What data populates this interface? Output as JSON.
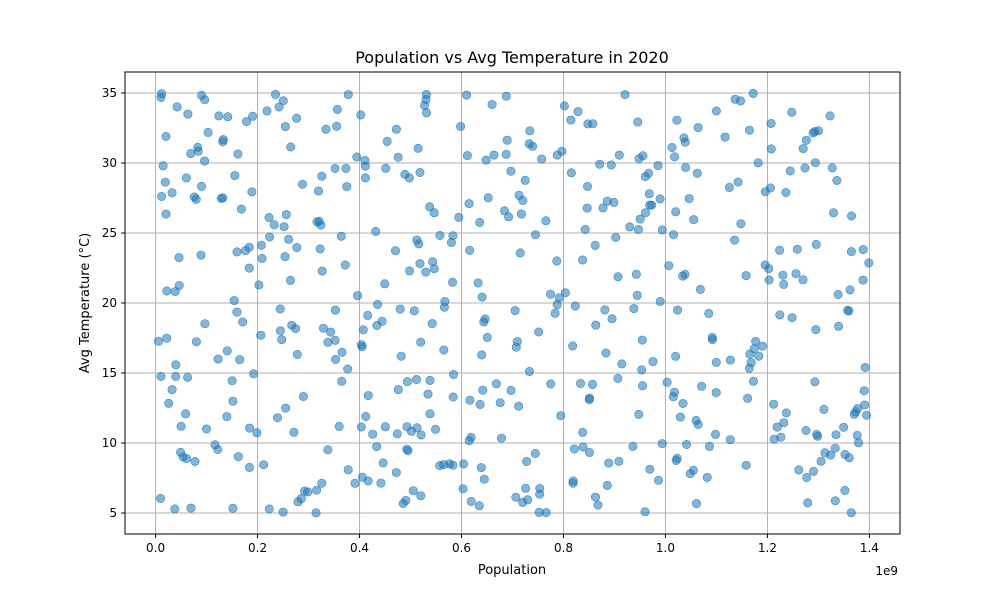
{
  "chart_data": {
    "type": "scatter",
    "title": "Population vs Avg Temperature in 2020",
    "xlabel": "Population",
    "ylabel": "Avg Temperature (°C)",
    "x_offset_label": "1e9",
    "xlim": [
      -60000000,
      1460000000
    ],
    "ylim": [
      3.5,
      36.5
    ],
    "xticks": [
      0,
      200000000,
      400000000,
      600000000,
      800000000,
      1000000000,
      1200000000,
      1400000000
    ],
    "xtick_labels": [
      "0.0",
      "0.2",
      "0.4",
      "0.6",
      "0.8",
      "1.0",
      "1.2",
      "1.4"
    ],
    "yticks": [
      5,
      10,
      15,
      20,
      25,
      30,
      35
    ],
    "ytick_labels": [
      "5",
      "10",
      "15",
      "20",
      "25",
      "30",
      "35"
    ],
    "grid": true,
    "point_color": "#1f77b4",
    "point_alpha": 0.55,
    "point_count": 520,
    "x_range": [
      0,
      1400000000
    ],
    "y_range": [
      5,
      35
    ],
    "seed": 7
  }
}
